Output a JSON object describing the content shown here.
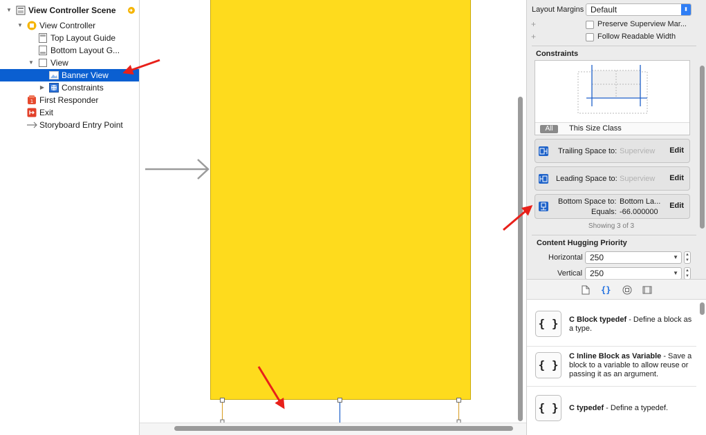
{
  "outline": {
    "scene_title": "View Controller Scene",
    "view_controller": "View Controller",
    "top_layout_guide": "Top Layout Guide",
    "bottom_layout_guide": "Bottom Layout G...",
    "view": "View",
    "banner_view": "Banner View",
    "constraints": "Constraints",
    "first_responder": "First Responder",
    "exit": "Exit",
    "storyboard_entry": "Storyboard Entry Point"
  },
  "canvas": {
    "view_color": "#fedb1d"
  },
  "inspector": {
    "layout_margins_label": "Layout Margins",
    "layout_margins_value": "Default",
    "preserve_superview": "Preserve Superview Mar...",
    "follow_readable": "Follow Readable Width",
    "constraints_title": "Constraints",
    "tab_all": "All",
    "tab_size_class": "This Size Class",
    "items": [
      {
        "label": "Trailing Space to:",
        "target": "Superview",
        "edit": "Edit"
      },
      {
        "label": "Leading Space to:",
        "target": "Superview",
        "edit": "Edit"
      },
      {
        "label": "Bottom Space to:",
        "target": "Bottom La...",
        "equals_label": "Equals:",
        "equals_value": "-66.000000",
        "edit": "Edit"
      }
    ],
    "showing": "Showing 3 of 3",
    "hugging_title": "Content Hugging Priority",
    "horizontal_label": "Horizontal",
    "horizontal_value": "250",
    "vertical_label": "Vertical",
    "vertical_value": "250"
  },
  "library": {
    "items": [
      {
        "title": "C Block typedef",
        "desc": " - Define a block as a type."
      },
      {
        "title": "C Inline Block as Variable",
        "desc": " - Save a block to a variable to allow reuse or passing it as an argument."
      },
      {
        "title": "C typedef",
        "desc": " - Define a typedef."
      }
    ]
  }
}
